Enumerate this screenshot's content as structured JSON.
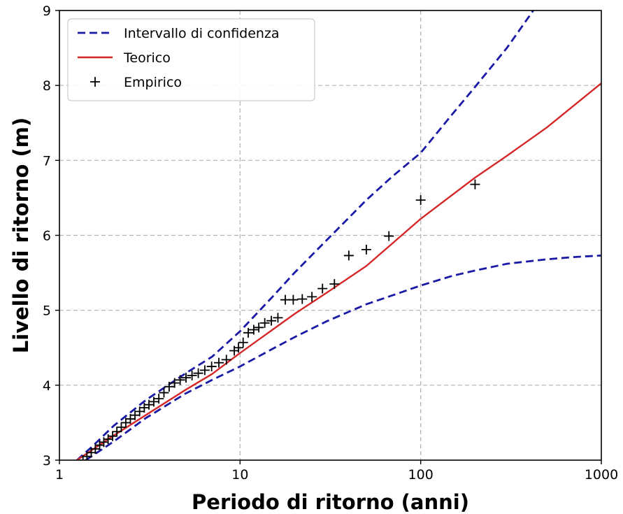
{
  "chart_data": {
    "type": "line",
    "xlabel": "Periodo di ritorno (anni)",
    "ylabel": "Livello di ritorno (m)",
    "xscale": "log",
    "xlim": [
      1,
      1000
    ],
    "ylim": [
      3,
      9
    ],
    "x_ticks": [
      1,
      10,
      100,
      1000
    ],
    "x_tick_labels": [
      "1",
      "10",
      "100",
      "1000"
    ],
    "y_ticks": [
      3,
      4,
      5,
      6,
      7,
      8,
      9
    ],
    "y_tick_labels": [
      "3",
      "4",
      "5",
      "6",
      "7",
      "8",
      "9"
    ],
    "grid": true,
    "legend_position": "top-left",
    "series": [
      {
        "name": "Intervallo di confidenza",
        "kind": "dashed-line",
        "color": "#1a1aa6",
        "x": [
          1.25,
          1.5,
          2,
          3,
          5,
          7,
          10,
          15,
          20,
          30,
          50,
          70,
          100,
          150,
          200,
          300,
          420
        ],
        "y": [
          3.0,
          3.17,
          3.46,
          3.8,
          4.16,
          4.38,
          4.72,
          5.17,
          5.5,
          5.93,
          6.47,
          6.79,
          7.1,
          7.62,
          7.98,
          8.5,
          9.0
        ]
      },
      {
        "name": "Intervallo di confidenza",
        "kind": "dashed-line",
        "color": "#1a1aa6",
        "show_in_legend": false,
        "x": [
          1.4,
          2,
          3,
          5,
          7,
          10,
          15,
          20,
          30,
          50,
          70,
          100,
          150,
          200,
          300,
          500,
          700,
          1000
        ],
        "y": [
          3.0,
          3.25,
          3.56,
          3.89,
          4.07,
          4.25,
          4.48,
          4.64,
          4.85,
          5.08,
          5.2,
          5.33,
          5.46,
          5.53,
          5.62,
          5.68,
          5.71,
          5.73
        ]
      },
      {
        "name": "Teorico",
        "kind": "line",
        "color": "#d62728",
        "x": [
          1.25,
          2,
          3,
          5,
          7,
          10,
          20,
          30,
          50,
          100,
          200,
          300,
          500,
          1000
        ],
        "y": [
          3.0,
          3.33,
          3.6,
          3.94,
          4.15,
          4.43,
          4.95,
          5.23,
          5.59,
          6.22,
          6.77,
          7.06,
          7.44,
          8.03
        ]
      },
      {
        "name": "Empirico",
        "kind": "markers",
        "marker": "+",
        "color": "#000000",
        "x": [
          1.35,
          1.42,
          1.5,
          1.58,
          1.67,
          1.76,
          1.86,
          1.97,
          2.08,
          2.2,
          2.33,
          2.47,
          2.62,
          2.78,
          2.95,
          3.13,
          3.33,
          3.55,
          3.79,
          4.05,
          4.34,
          4.66,
          5.02,
          5.42,
          5.87,
          6.38,
          6.96,
          7.63,
          8.4,
          9.29,
          9.8,
          10.4,
          11.1,
          11.9,
          12.7,
          13.7,
          14.9,
          16.2,
          17.8,
          19.7,
          22.1,
          25.0,
          28.6,
          33.3,
          40.0,
          50.0,
          66.7,
          100.0,
          200.0
        ],
        "y": [
          3.0,
          3.05,
          3.1,
          3.15,
          3.2,
          3.24,
          3.28,
          3.32,
          3.38,
          3.44,
          3.5,
          3.55,
          3.6,
          3.65,
          3.7,
          3.74,
          3.78,
          3.82,
          3.9,
          3.98,
          4.03,
          4.07,
          4.1,
          4.13,
          4.16,
          4.2,
          4.25,
          4.3,
          4.34,
          4.46,
          4.5,
          4.57,
          4.7,
          4.74,
          4.77,
          4.83,
          4.86,
          4.9,
          5.14,
          5.14,
          5.15,
          5.18,
          5.29,
          5.35,
          5.73,
          5.81,
          5.99,
          6.47,
          6.68
        ]
      }
    ]
  }
}
